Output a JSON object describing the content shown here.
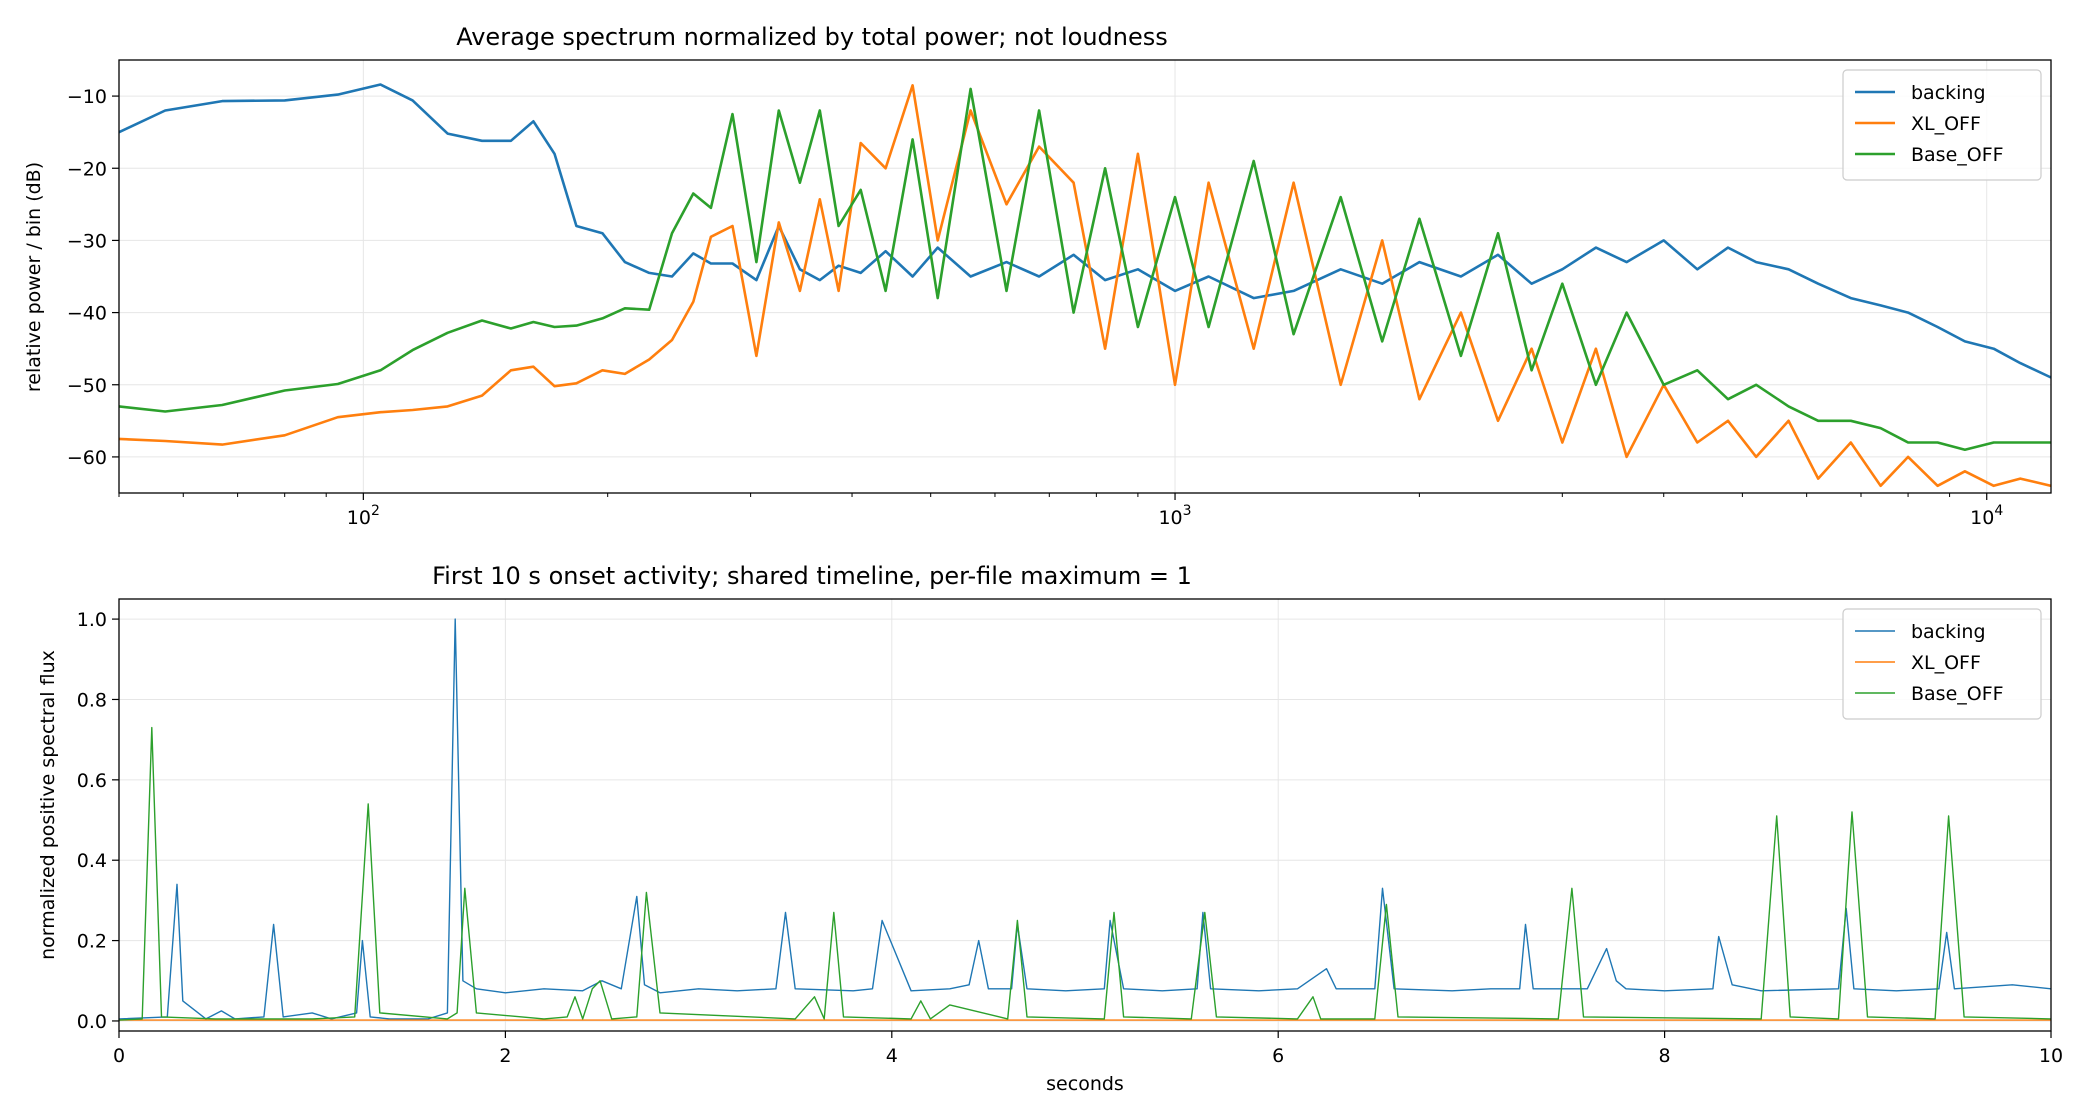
{
  "colors": {
    "backing": "#1f77b4",
    "xl_off": "#ff7f0e",
    "base_off": "#2ca02c"
  },
  "chart_data": [
    {
      "type": "line",
      "title": "Average spectrum normalized by total power; not loudness",
      "xlabel": "",
      "ylabel": "relative power / bin (dB)",
      "xscale": "log",
      "xlim": [
        50,
        12000
      ],
      "ylim": [
        -65,
        -5
      ],
      "yticks": [
        -10,
        -20,
        -30,
        -40,
        -50,
        -60
      ],
      "ytick_labels": [
        "−10",
        "−20",
        "−30",
        "−40",
        "−50",
        "−60"
      ],
      "xticks": [
        100,
        1000,
        10000
      ],
      "xtick_labels": [
        {
          "base": "10",
          "exp": "2"
        },
        {
          "base": "10",
          "exp": "3"
        },
        {
          "base": "10",
          "exp": "4"
        }
      ],
      "grid": true,
      "legend": "top-right",
      "series": [
        {
          "name": "backing",
          "color": "#1f77b4",
          "x": [
            50,
            57,
            67,
            80,
            93,
            105,
            115,
            127,
            140,
            152,
            162,
            172,
            183,
            197,
            210,
            225,
            240,
            255,
            268,
            285,
            305,
            325,
            345,
            365,
            385,
            410,
            440,
            475,
            510,
            560,
            620,
            680,
            750,
            820,
            900,
            1000,
            1100,
            1250,
            1400,
            1600,
            1800,
            2000,
            2250,
            2500,
            2750,
            3000,
            3300,
            3600,
            4000,
            4400,
            4800,
            5200,
            5700,
            6200,
            6800,
            7400,
            8000,
            8700,
            9400,
            10200,
            11000,
            12000
          ],
          "y": [
            -15,
            -12,
            -10.7,
            -10.6,
            -9.8,
            -8.4,
            -10.6,
            -15.2,
            -16.2,
            -16.2,
            -13.5,
            -18,
            -28,
            -29,
            -33,
            -34.5,
            -35,
            -31.8,
            -33.2,
            -33.2,
            -35.5,
            -28,
            -34,
            -35.5,
            -33.5,
            -34.5,
            -31.5,
            -35,
            -31,
            -35,
            -33,
            -35,
            -32,
            -35.5,
            -34,
            -37,
            -35,
            -38,
            -37,
            -34,
            -36,
            -33,
            -35,
            -32,
            -36,
            -34,
            -31,
            -33,
            -30,
            -34,
            -31,
            -33,
            -34,
            -36,
            -38,
            -39,
            -40,
            -42,
            -44,
            -45,
            -47,
            -49
          ]
        },
        {
          "name": "XL_OFF",
          "color": "#ff7f0e",
          "x": [
            50,
            57,
            67,
            80,
            93,
            105,
            115,
            127,
            140,
            152,
            162,
            172,
            183,
            197,
            210,
            225,
            240,
            255,
            268,
            285,
            305,
            325,
            345,
            365,
            385,
            410,
            440,
            475,
            510,
            560,
            620,
            680,
            750,
            820,
            900,
            1000,
            1100,
            1250,
            1400,
            1600,
            1800,
            2000,
            2250,
            2500,
            2750,
            3000,
            3300,
            3600,
            4000,
            4400,
            4800,
            5200,
            5700,
            6200,
            6800,
            7400,
            8000,
            8700,
            9400,
            10200,
            11000,
            12000
          ],
          "y": [
            -57.5,
            -57.8,
            -58.3,
            -57,
            -54.5,
            -53.8,
            -53.5,
            -53,
            -51.5,
            -48,
            -47.5,
            -50.2,
            -49.8,
            -48,
            -48.5,
            -46.5,
            -43.8,
            -38.5,
            -29.5,
            -28,
            -46,
            -27.5,
            -37,
            -24.3,
            -37,
            -16.5,
            -20,
            -8.5,
            -30,
            -12,
            -25,
            -17,
            -22,
            -45,
            -18,
            -50,
            -22,
            -45,
            -22,
            -50,
            -30,
            -52,
            -40,
            -55,
            -45,
            -58,
            -45,
            -60,
            -50,
            -58,
            -55,
            -60,
            -55,
            -63,
            -58,
            -64,
            -60,
            -64,
            -62,
            -64,
            -63,
            -64
          ]
        },
        {
          "name": "Base_OFF",
          "color": "#2ca02c",
          "x": [
            50,
            57,
            67,
            80,
            93,
            105,
            115,
            127,
            140,
            152,
            162,
            172,
            183,
            197,
            210,
            225,
            240,
            255,
            268,
            285,
            305,
            325,
            345,
            365,
            385,
            410,
            440,
            475,
            510,
            560,
            620,
            680,
            750,
            820,
            900,
            1000,
            1100,
            1250,
            1400,
            1600,
            1800,
            2000,
            2250,
            2500,
            2750,
            3000,
            3300,
            3600,
            4000,
            4400,
            4800,
            5200,
            5700,
            6200,
            6800,
            7400,
            8000,
            8700,
            9400,
            10200,
            11000,
            12000
          ],
          "y": [
            -53,
            -53.7,
            -52.8,
            -50.8,
            -49.9,
            -48,
            -45.2,
            -42.8,
            -41.1,
            -42.2,
            -41.3,
            -42,
            -41.8,
            -40.8,
            -39.4,
            -39.6,
            -29,
            -23.5,
            -25.5,
            -12.5,
            -33,
            -12,
            -22,
            -12,
            -28,
            -23,
            -37,
            -16,
            -38,
            -9,
            -37,
            -12,
            -40,
            -20,
            -42,
            -24,
            -42,
            -19,
            -43,
            -24,
            -44,
            -27,
            -46,
            -29,
            -48,
            -36,
            -50,
            -40,
            -50,
            -48,
            -52,
            -50,
            -53,
            -55,
            -55,
            -56,
            -58,
            -58,
            -59,
            -58,
            -58,
            -58
          ]
        }
      ]
    },
    {
      "type": "line",
      "title": "First 10 s onset activity; shared timeline, per-file maximum = 1",
      "xlabel": "seconds",
      "ylabel": "normalized positive spectral flux",
      "xlim": [
        0,
        10
      ],
      "ylim": [
        -0.025,
        1.05
      ],
      "xticks": [
        0,
        2,
        4,
        6,
        8,
        10
      ],
      "yticks": [
        0.0,
        0.2,
        0.4,
        0.6,
        0.8,
        1.0
      ],
      "ytick_labels": [
        "0.0",
        "0.2",
        "0.4",
        "0.6",
        "0.8",
        "1.0"
      ],
      "xtick_labels": [
        "0",
        "2",
        "4",
        "6",
        "8",
        "10"
      ],
      "grid": true,
      "legend": "top-right",
      "series": [
        {
          "name": "backing",
          "color": "#1f77b4",
          "x": [
            0,
            0.25,
            0.3,
            0.33,
            0.45,
            0.53,
            0.6,
            0.75,
            0.8,
            0.85,
            1.0,
            1.1,
            1.23,
            1.26,
            1.3,
            1.4,
            1.6,
            1.7,
            1.74,
            1.78,
            1.85,
            2.0,
            2.2,
            2.4,
            2.5,
            2.6,
            2.68,
            2.72,
            2.8,
            3.0,
            3.2,
            3.4,
            3.45,
            3.5,
            3.8,
            3.9,
            3.95,
            4.1,
            4.3,
            4.4,
            4.45,
            4.5,
            4.62,
            4.65,
            4.7,
            4.9,
            5.1,
            5.13,
            5.2,
            5.4,
            5.58,
            5.61,
            5.65,
            5.9,
            6.1,
            6.25,
            6.3,
            6.5,
            6.54,
            6.6,
            6.9,
            7.1,
            7.25,
            7.28,
            7.32,
            7.6,
            7.7,
            7.75,
            7.8,
            8.0,
            8.25,
            8.28,
            8.35,
            8.5,
            8.9,
            8.94,
            8.98,
            9.2,
            9.42,
            9.46,
            9.5,
            9.8,
            10.0
          ],
          "y": [
            0.005,
            0.01,
            0.34,
            0.05,
            0.005,
            0.025,
            0.005,
            0.01,
            0.24,
            0.01,
            0.02,
            0.005,
            0.02,
            0.2,
            0.01,
            0.005,
            0.005,
            0.02,
            1.0,
            0.1,
            0.08,
            0.07,
            0.08,
            0.075,
            0.1,
            0.08,
            0.31,
            0.09,
            0.07,
            0.08,
            0.075,
            0.08,
            0.27,
            0.08,
            0.075,
            0.08,
            0.25,
            0.075,
            0.08,
            0.09,
            0.2,
            0.08,
            0.08,
            0.24,
            0.08,
            0.075,
            0.08,
            0.25,
            0.08,
            0.075,
            0.08,
            0.27,
            0.08,
            0.075,
            0.08,
            0.13,
            0.08,
            0.08,
            0.33,
            0.08,
            0.075,
            0.08,
            0.08,
            0.24,
            0.08,
            0.08,
            0.18,
            0.1,
            0.08,
            0.075,
            0.08,
            0.21,
            0.09,
            0.075,
            0.08,
            0.28,
            0.08,
            0.075,
            0.08,
            0.22,
            0.08,
            0.09,
            0.08
          ]
        },
        {
          "name": "XL_OFF",
          "color": "#ff7f0e",
          "x": [
            0,
            1,
            2,
            3,
            4,
            5,
            6,
            7,
            8,
            9,
            10
          ],
          "y": [
            0.002,
            0.002,
            0.002,
            0.002,
            0.002,
            0.002,
            0.002,
            0.002,
            0.002,
            0.002,
            0.002
          ]
        },
        {
          "name": "Base_OFF",
          "color": "#2ca02c",
          "x": [
            0,
            0.12,
            0.17,
            0.22,
            0.5,
            1.0,
            1.22,
            1.29,
            1.35,
            1.7,
            1.75,
            1.79,
            1.85,
            2.2,
            2.32,
            2.36,
            2.4,
            2.45,
            2.49,
            2.55,
            2.68,
            2.73,
            2.8,
            3.5,
            3.6,
            3.65,
            3.7,
            3.75,
            4.1,
            4.15,
            4.2,
            4.3,
            4.6,
            4.65,
            4.7,
            5.1,
            5.15,
            5.2,
            5.55,
            5.62,
            5.68,
            6.1,
            6.18,
            6.22,
            6.5,
            6.56,
            6.62,
            7.45,
            7.52,
            7.58,
            8.5,
            8.58,
            8.65,
            8.9,
            8.97,
            9.05,
            9.4,
            9.47,
            9.55,
            10.0
          ],
          "y": [
            0.002,
            0.005,
            0.73,
            0.01,
            0.005,
            0.005,
            0.01,
            0.54,
            0.02,
            0.005,
            0.02,
            0.33,
            0.02,
            0.005,
            0.01,
            0.06,
            0.005,
            0.08,
            0.1,
            0.005,
            0.01,
            0.32,
            0.02,
            0.005,
            0.06,
            0.005,
            0.27,
            0.01,
            0.005,
            0.05,
            0.005,
            0.04,
            0.005,
            0.25,
            0.01,
            0.005,
            0.27,
            0.01,
            0.005,
            0.27,
            0.01,
            0.005,
            0.06,
            0.005,
            0.005,
            0.29,
            0.01,
            0.005,
            0.33,
            0.01,
            0.005,
            0.51,
            0.01,
            0.005,
            0.52,
            0.01,
            0.005,
            0.51,
            0.01,
            0.005
          ]
        }
      ]
    }
  ]
}
